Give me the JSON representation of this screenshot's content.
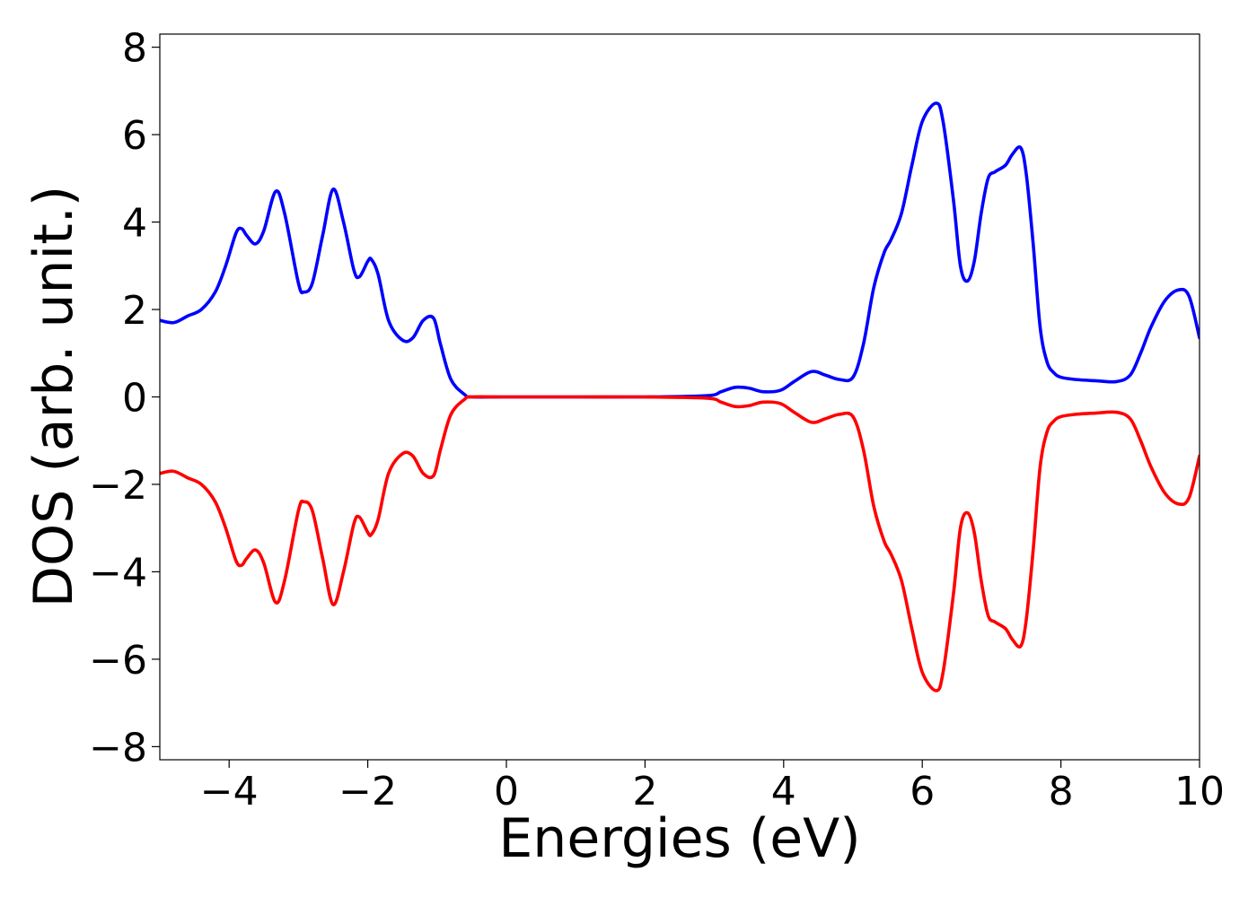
{
  "chart_data": {
    "type": "line",
    "xlabel": "Energies (eV)",
    "ylabel": "DOS (arb. unit.)",
    "xlim": [
      -5,
      10
    ],
    "ylim": [
      -8.3,
      8.3
    ],
    "xticks": [
      -4,
      -2,
      0,
      2,
      4,
      6,
      8,
      10
    ],
    "yticks": [
      -8,
      -6,
      -4,
      -2,
      0,
      2,
      4,
      6,
      8
    ],
    "grid": false,
    "legend": "none",
    "series": [
      {
        "color": "#0000ff",
        "x": [
          -5.0,
          -4.8,
          -4.6,
          -4.4,
          -4.2,
          -4.05,
          -3.9,
          -3.82,
          -3.75,
          -3.62,
          -3.5,
          -3.33,
          -3.2,
          -3.0,
          -2.92,
          -2.8,
          -2.65,
          -2.5,
          -2.35,
          -2.2,
          -2.12,
          -2.0,
          -1.95,
          -1.85,
          -1.7,
          -1.5,
          -1.35,
          -1.2,
          -1.05,
          -0.95,
          -0.8,
          -0.6,
          -0.5,
          0.0,
          1.0,
          2.0,
          2.9,
          3.1,
          3.3,
          3.5,
          3.7,
          3.95,
          4.15,
          4.4,
          4.6,
          4.8,
          5.0,
          5.15,
          5.3,
          5.45,
          5.55,
          5.7,
          5.85,
          6.0,
          6.2,
          6.3,
          6.45,
          6.55,
          6.65,
          6.75,
          6.85,
          6.95,
          7.05,
          7.2,
          7.3,
          7.42,
          7.5,
          7.6,
          7.7,
          7.8,
          7.9,
          8.0,
          8.2,
          8.5,
          8.8,
          9.0,
          9.15,
          9.3,
          9.5,
          9.7,
          9.85,
          10.0
        ],
        "y": [
          1.75,
          1.7,
          1.85,
          2.0,
          2.4,
          3.0,
          3.75,
          3.85,
          3.7,
          3.5,
          3.8,
          4.7,
          4.2,
          2.6,
          2.4,
          2.6,
          3.7,
          4.75,
          4.0,
          2.9,
          2.75,
          3.1,
          3.15,
          2.8,
          1.75,
          1.3,
          1.35,
          1.75,
          1.8,
          1.2,
          0.4,
          0.05,
          0.0,
          0.0,
          0.0,
          0.0,
          0.03,
          0.12,
          0.22,
          0.2,
          0.12,
          0.15,
          0.35,
          0.58,
          0.5,
          0.4,
          0.45,
          1.2,
          2.5,
          3.3,
          3.6,
          4.2,
          5.3,
          6.3,
          6.72,
          6.3,
          4.5,
          3.0,
          2.65,
          3.1,
          4.2,
          5.0,
          5.15,
          5.3,
          5.55,
          5.7,
          5.1,
          3.5,
          1.6,
          0.8,
          0.55,
          0.45,
          0.4,
          0.37,
          0.35,
          0.5,
          1.0,
          1.6,
          2.2,
          2.45,
          2.3,
          1.35
        ]
      },
      {
        "color": "#ff0000",
        "x": [
          -5.0,
          -4.8,
          -4.6,
          -4.4,
          -4.2,
          -4.05,
          -3.9,
          -3.82,
          -3.75,
          -3.62,
          -3.5,
          -3.33,
          -3.2,
          -3.0,
          -2.92,
          -2.8,
          -2.65,
          -2.5,
          -2.35,
          -2.2,
          -2.12,
          -2.0,
          -1.95,
          -1.85,
          -1.7,
          -1.5,
          -1.35,
          -1.2,
          -1.05,
          -0.95,
          -0.8,
          -0.6,
          -0.5,
          0.0,
          1.0,
          2.0,
          2.9,
          3.1,
          3.3,
          3.5,
          3.7,
          3.95,
          4.15,
          4.4,
          4.6,
          4.8,
          5.0,
          5.15,
          5.3,
          5.45,
          5.55,
          5.7,
          5.85,
          6.0,
          6.2,
          6.3,
          6.45,
          6.55,
          6.65,
          6.75,
          6.85,
          6.95,
          7.05,
          7.2,
          7.3,
          7.42,
          7.5,
          7.6,
          7.7,
          7.8,
          7.9,
          8.0,
          8.2,
          8.5,
          8.8,
          9.0,
          9.15,
          9.3,
          9.5,
          9.7,
          9.85,
          10.0
        ],
        "y": [
          -1.75,
          -1.7,
          -1.85,
          -2.0,
          -2.4,
          -3.0,
          -3.75,
          -3.85,
          -3.7,
          -3.5,
          -3.8,
          -4.7,
          -4.2,
          -2.6,
          -2.4,
          -2.6,
          -3.7,
          -4.75,
          -4.0,
          -2.9,
          -2.75,
          -3.1,
          -3.15,
          -2.8,
          -1.75,
          -1.3,
          -1.35,
          -1.75,
          -1.8,
          -1.2,
          -0.4,
          -0.05,
          0.0,
          0.0,
          0.0,
          0.0,
          -0.03,
          -0.12,
          -0.22,
          -0.2,
          -0.12,
          -0.15,
          -0.35,
          -0.58,
          -0.5,
          -0.4,
          -0.45,
          -1.2,
          -2.5,
          -3.3,
          -3.6,
          -4.2,
          -5.3,
          -6.3,
          -6.72,
          -6.3,
          -4.5,
          -3.0,
          -2.65,
          -3.1,
          -4.2,
          -5.0,
          -5.15,
          -5.3,
          -5.55,
          -5.7,
          -5.1,
          -3.5,
          -1.6,
          -0.8,
          -0.55,
          -0.45,
          -0.4,
          -0.37,
          -0.35,
          -0.5,
          -1.0,
          -1.6,
          -2.2,
          -2.45,
          -2.3,
          -1.35
        ]
      }
    ]
  }
}
